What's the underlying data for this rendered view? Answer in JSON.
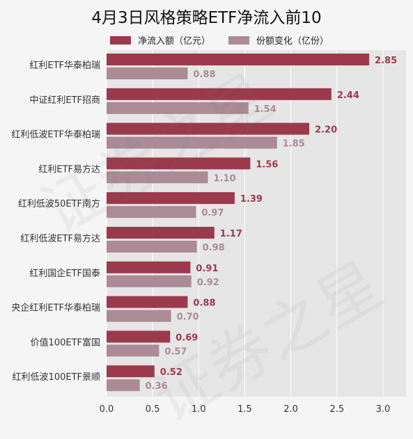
{
  "chart_data": {
    "type": "bar",
    "orientation": "horizontal",
    "title": "4月3日风格策略ETF净流入前10",
    "categories": [
      "红利ETF华泰柏瑞",
      "中证红利ETF招商",
      "红利低波ETF华泰柏瑞",
      "红利ETF易方达",
      "红利低波50ETF南方",
      "红利低波ETF易方达",
      "红利国企ETF国泰",
      "央企红利ETF华泰柏瑞",
      "价值100ETF富国",
      "红利低波100ETF景顺"
    ],
    "series": [
      {
        "name": "净流入额（亿元）",
        "color": "#9b3a4c",
        "values": [
          2.85,
          2.44,
          2.2,
          1.56,
          1.39,
          1.17,
          0.91,
          0.88,
          0.69,
          0.52
        ],
        "labels": [
          "2.85",
          "2.44",
          "2.20",
          "1.56",
          "1.39",
          "1.17",
          "0.91",
          "0.88",
          "0.69",
          "0.52"
        ]
      },
      {
        "name": "份额变化（亿份）",
        "color": "#ab8b95",
        "values": [
          0.88,
          1.54,
          1.85,
          1.1,
          0.97,
          0.98,
          0.92,
          0.7,
          0.57,
          0.36
        ],
        "labels": [
          "0.88",
          "1.54",
          "1.85",
          "1.10",
          "0.97",
          "0.98",
          "0.92",
          "0.70",
          "0.57",
          "0.36"
        ]
      }
    ],
    "xlim": [
      0,
      3.25
    ],
    "xticks": [
      0,
      0.5,
      1,
      1.5,
      2,
      2.5,
      3
    ],
    "xtick_labels": [
      "0.0",
      "0.5",
      "1.0",
      "1.5",
      "2.0",
      "2.5",
      "3.0"
    ],
    "grid": true,
    "legend_position": "top"
  },
  "watermark": "证券之星"
}
